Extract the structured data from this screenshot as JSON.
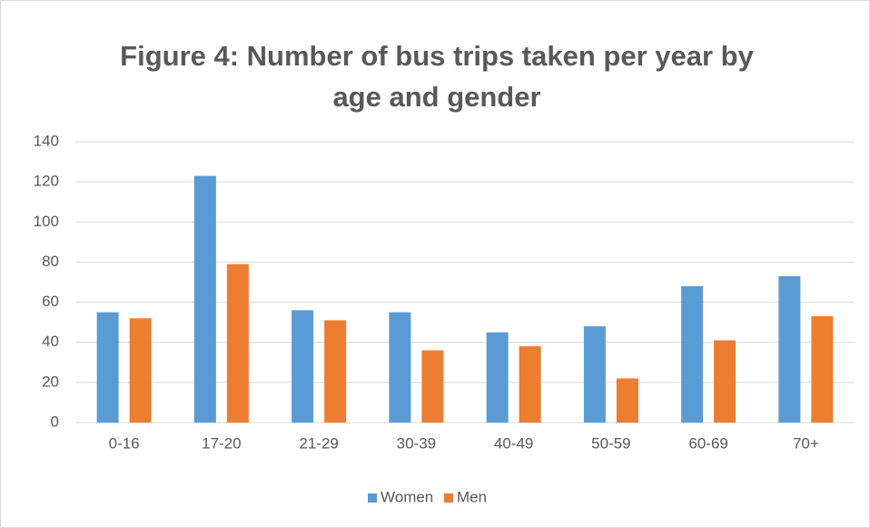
{
  "chart_data": {
    "type": "bar",
    "title": "Figure 4: Number of bus trips taken per year by age and gender",
    "categories": [
      "0-16",
      "17-20",
      "21-29",
      "30-39",
      "40-49",
      "50-59",
      "60-69",
      "70+"
    ],
    "series": [
      {
        "name": "Women",
        "color": "#5b9bd5",
        "values": [
          55,
          123,
          56,
          55,
          45,
          48,
          68,
          73
        ]
      },
      {
        "name": "Men",
        "color": "#ed7d31",
        "values": [
          52,
          79,
          51,
          36,
          38,
          22,
          41,
          53
        ]
      }
    ],
    "ylim": [
      0,
      140
    ],
    "yticks": [
      0,
      20,
      40,
      60,
      80,
      100,
      120,
      140
    ],
    "grid": true,
    "legend": "bottom"
  }
}
